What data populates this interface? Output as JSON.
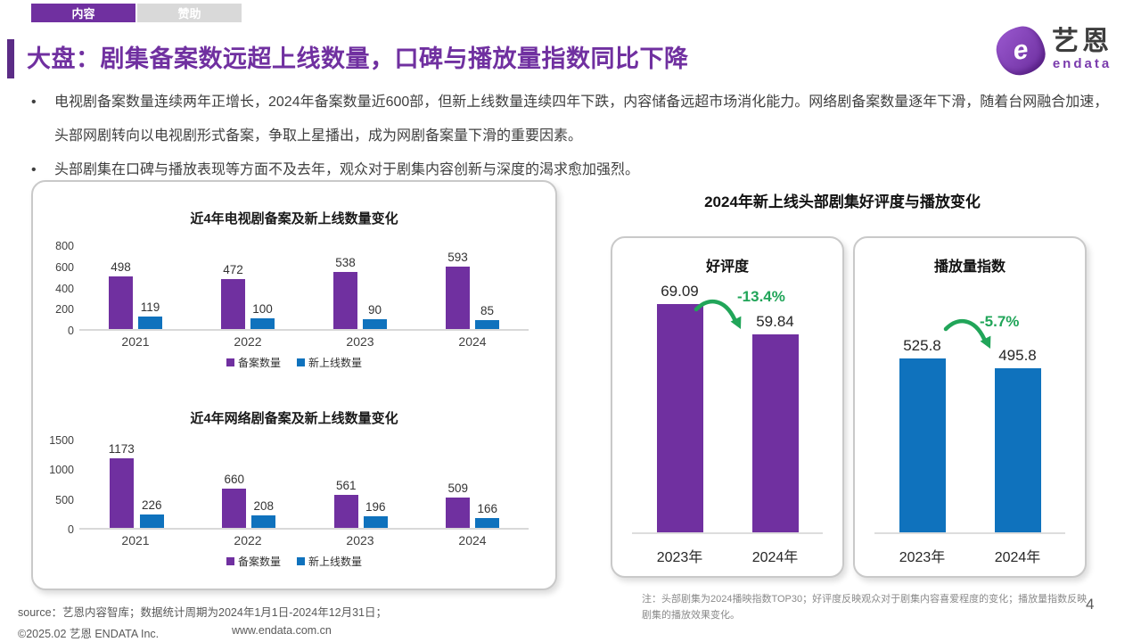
{
  "tabs": [
    {
      "label": "内容"
    },
    {
      "label": "赞助"
    }
  ],
  "header": {
    "title": "大盘：剧集备案数远超上线数量，口碑与播放量指数同比下降"
  },
  "logo": {
    "mark": "e",
    "brand": "艺恩",
    "subbrand": "endata"
  },
  "bullets": [
    "电视剧备案数量连续两年正增长，2024年备案数量近600部，但新上线数量连续四年下跌，内容储备远超市场消化能力。网络剧备案数量逐年下滑，随着台网融合加速，头部网剧转向以电视剧形式备案，争取上星播出，成为网剧备案量下滑的重要因素。",
    "头部剧集在口碑与播放表现等方面不及去年，观众对于剧集内容创新与深度的渴求愈加强烈。"
  ],
  "right_section": {
    "title": "2024年新上线头部剧集好评度与播放变化",
    "note": "注：头部剧集为2024播映指数TOP30；好评度反映观众对于剧集内容喜爱程度的变化；播放量指数反映剧集的播放效果变化。"
  },
  "footer": {
    "source": "source：艺恩内容智库；数据统计周期为2024年1月1日-2024年12月31日；",
    "copyright": "©2025.02 艺恩 ENDATA Inc.",
    "website": "www.endata.com.cn",
    "page_number": "4"
  },
  "colors": {
    "purple": "#7030A0",
    "blue": "#0F72BD",
    "green": "#21A559",
    "tab_gray": "#D9D9D9"
  },
  "chart_data": [
    {
      "type": "bar",
      "title": "近4年电视剧备案及新上线数量变化",
      "categories": [
        "2021",
        "2022",
        "2023",
        "2024"
      ],
      "series": [
        {
          "name": "备案数量",
          "color": "#7030A0",
          "values": [
            498,
            472,
            538,
            593
          ]
        },
        {
          "name": "新上线数量",
          "color": "#0F72BD",
          "values": [
            119,
            100,
            90,
            85
          ]
        }
      ],
      "ylim": [
        0,
        800
      ],
      "yticks": [
        800,
        600,
        400,
        200,
        0
      ],
      "grid": false,
      "legend_position": "bottom"
    },
    {
      "type": "bar",
      "title": "近4年网络剧备案及新上线数量变化",
      "categories": [
        "2021",
        "2022",
        "2023",
        "2024"
      ],
      "series": [
        {
          "name": "备案数量",
          "color": "#7030A0",
          "values": [
            1173,
            660,
            561,
            509
          ]
        },
        {
          "name": "新上线数量",
          "color": "#0F72BD",
          "values": [
            226,
            208,
            196,
            166
          ]
        }
      ],
      "ylim": [
        0,
        1500
      ],
      "yticks": [
        1500,
        1000,
        500,
        0
      ],
      "grid": false,
      "legend_position": "bottom"
    },
    {
      "type": "bar",
      "title": "好评度",
      "categories": [
        "2023年",
        "2024年"
      ],
      "values": [
        69.09,
        59.84
      ],
      "change_label": "-13.4%",
      "color": "#7030A0",
      "ylim": [
        0,
        80
      ],
      "grid": false
    },
    {
      "type": "bar",
      "title": "播放量指数",
      "categories": [
        "2023年",
        "2024年"
      ],
      "values": [
        525.8,
        495.8
      ],
      "change_label": "-5.7%",
      "color": "#0F72BD",
      "ylim": [
        0,
        800
      ],
      "grid": false
    }
  ]
}
